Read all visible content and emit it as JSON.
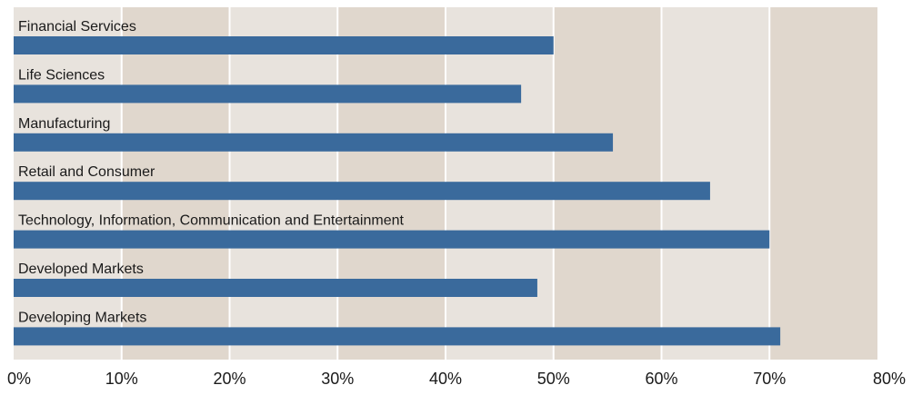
{
  "chart_data": {
    "type": "bar",
    "orientation": "horizontal",
    "categories": [
      "Financial Services",
      "Life Sciences",
      "Manufacturing",
      "Retail and Consumer",
      "Technology, Information, Communication and Entertainment",
      "Developed Markets",
      "Developing Markets"
    ],
    "values": [
      50,
      47,
      55.5,
      64.5,
      70,
      48.5,
      71
    ],
    "value_unit": "%",
    "xlim": [
      0,
      80
    ],
    "xticks": [
      "0%",
      "10%",
      "20%",
      "30%",
      "40%",
      "50%",
      "60%",
      "70%",
      "80%"
    ],
    "grid": true,
    "legend": "none",
    "colors": {
      "bar": "#3a6a9c",
      "band_dark": "#e0d7cd",
      "band_light": "#e8e3dd",
      "gridline": "#ffffff",
      "label_text": "#1a1a1a"
    }
  }
}
